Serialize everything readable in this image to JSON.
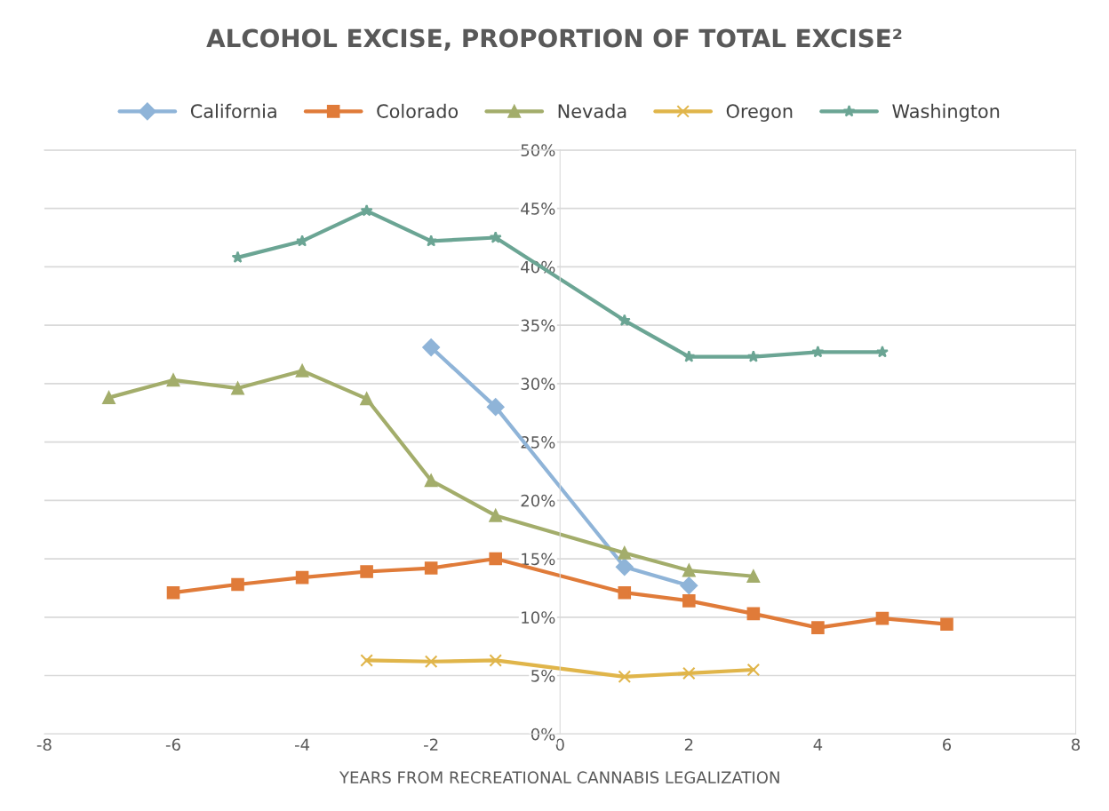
{
  "chart_data": {
    "type": "line",
    "title": "ALCOHOL EXCISE, PROPORTION OF TOTAL EXCISE²",
    "xlabel": "YEARS FROM RECREATIONAL CANNABIS LEGALIZATION",
    "xlim": [
      -8,
      8
    ],
    "xticks": [
      -8,
      -6,
      -4,
      -2,
      0,
      2,
      4,
      6,
      8
    ],
    "ylim": [
      0,
      50
    ],
    "yticks": [
      {
        "value": 0,
        "label": "0%"
      },
      {
        "value": 5,
        "label": "5%"
      },
      {
        "value": 10,
        "label": "10%"
      },
      {
        "value": 15,
        "label": "15%"
      },
      {
        "value": 20,
        "label": "20%"
      },
      {
        "value": 25,
        "label": "25%"
      },
      {
        "value": 30,
        "label": "30%"
      },
      {
        "value": 35,
        "label": "35%"
      },
      {
        "value": 40,
        "label": "40%"
      },
      {
        "value": 45,
        "label": "45%"
      },
      {
        "value": 50,
        "label": "50%"
      }
    ],
    "grid": "y",
    "legend": "top",
    "line_style": "solid",
    "series": [
      {
        "name": "California",
        "color": "#8fb4d8",
        "marker": "diamond",
        "x": [
          -2,
          -1,
          1,
          2
        ],
        "values": [
          33.1,
          28.0,
          14.3,
          12.7
        ]
      },
      {
        "name": "Colorado",
        "color": "#e07b39",
        "marker": "square",
        "x": [
          -6,
          -5,
          -4,
          -3,
          -2,
          -1,
          1,
          2,
          3,
          4,
          5,
          6
        ],
        "values": [
          12.1,
          12.8,
          13.4,
          13.9,
          14.2,
          15.0,
          12.1,
          11.4,
          10.3,
          9.1,
          9.9,
          9.4
        ]
      },
      {
        "name": "Nevada",
        "color": "#a3ad6b",
        "marker": "triangle",
        "x": [
          -7,
          -6,
          -5,
          -4,
          -3,
          -2,
          -1,
          1,
          2,
          3
        ],
        "values": [
          28.8,
          30.3,
          29.6,
          31.1,
          28.7,
          21.7,
          18.7,
          15.5,
          14.0,
          13.5
        ]
      },
      {
        "name": "Oregon",
        "color": "#e0b54a",
        "marker": "cross",
        "x": [
          -3,
          -2,
          -1,
          1,
          2,
          3
        ],
        "values": [
          6.3,
          6.2,
          6.3,
          4.9,
          5.2,
          5.5
        ]
      },
      {
        "name": "Washington",
        "color": "#6ba594",
        "marker": "star",
        "x": [
          -5,
          -4,
          -3,
          -2,
          -1,
          1,
          2,
          3,
          4,
          5
        ],
        "values": [
          40.8,
          42.2,
          44.8,
          42.2,
          42.5,
          35.4,
          32.3,
          32.3,
          32.7,
          32.7
        ]
      }
    ]
  }
}
